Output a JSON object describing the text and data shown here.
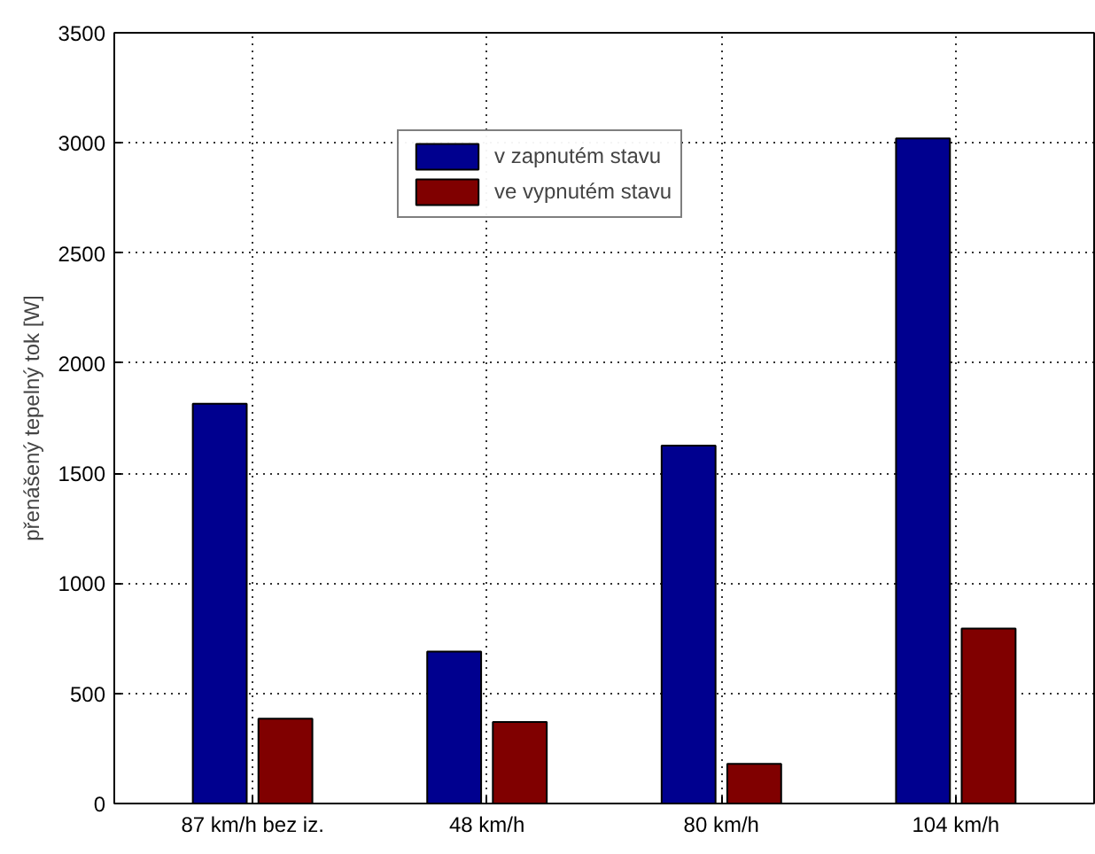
{
  "chart_data": {
    "type": "bar",
    "ylabel": "přenášený tepelný tok [W]",
    "categories": [
      "87 km/h bez iz.",
      "48 km/h",
      "80 km/h",
      "104 km/h"
    ],
    "series": [
      {
        "name": "v zapnutém stavu",
        "color": "#00008f",
        "values": [
          1815,
          690,
          1625,
          3020
        ]
      },
      {
        "name": "ve vypnutém stavu",
        "color": "#800000",
        "values": [
          385,
          370,
          180,
          795
        ]
      }
    ],
    "ylim": [
      0,
      3500
    ],
    "yticks": [
      0,
      500,
      1000,
      1500,
      2000,
      2500,
      3000,
      3500
    ],
    "grid": true,
    "legend": "top"
  }
}
